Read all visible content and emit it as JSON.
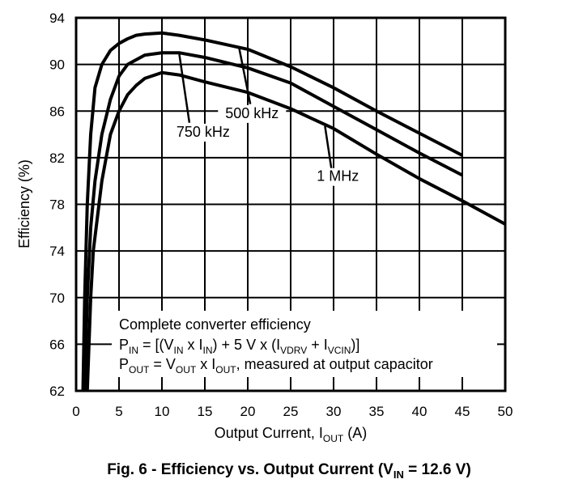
{
  "chart_data": {
    "type": "line",
    "title": "Fig. 6 - Efficiency vs. Output Current (V",
    "title_sub": "IN",
    "title_tail": " = 12.6 V)",
    "xlabel": "Output Current, I",
    "xlabel_sub": "OUT",
    "xlabel_tail": " (A)",
    "ylabel": "Efficiency (%)",
    "xlim": [
      0,
      50
    ],
    "ylim": [
      62,
      94
    ],
    "xticks": [
      0,
      5,
      10,
      15,
      20,
      25,
      30,
      35,
      40,
      45,
      50
    ],
    "yticks": [
      62,
      66,
      70,
      74,
      78,
      82,
      86,
      90,
      94
    ],
    "grid": true,
    "series": [
      {
        "name": "500 kHz",
        "points": [
          [
            0.8,
            62
          ],
          [
            1,
            70
          ],
          [
            1.3,
            78
          ],
          [
            1.7,
            84
          ],
          [
            2.2,
            88
          ],
          [
            3,
            90
          ],
          [
            4,
            91.2
          ],
          [
            5,
            91.8
          ],
          [
            6,
            92.2
          ],
          [
            7,
            92.5
          ],
          [
            8,
            92.6
          ],
          [
            10,
            92.7
          ],
          [
            12,
            92.5
          ],
          [
            15,
            92.1
          ],
          [
            20,
            91.3
          ],
          [
            25,
            89.8
          ],
          [
            30,
            88.0
          ],
          [
            35,
            86.0
          ],
          [
            40,
            84.1
          ],
          [
            45,
            82.2
          ]
        ],
        "label_at": [
          20.5,
          85.4
        ],
        "leader": [
          [
            19,
            91.4
          ],
          [
            20.3,
            86.6
          ]
        ]
      },
      {
        "name": "750 kHz",
        "points": [
          [
            1,
            62
          ],
          [
            1.3,
            70
          ],
          [
            1.7,
            76
          ],
          [
            2.2,
            80
          ],
          [
            3,
            84
          ],
          [
            4,
            87
          ],
          [
            5,
            89
          ],
          [
            6,
            90
          ],
          [
            8,
            90.8
          ],
          [
            10,
            91
          ],
          [
            12,
            91
          ],
          [
            15,
            90.6
          ],
          [
            20,
            89.7
          ],
          [
            25,
            88.4
          ],
          [
            30,
            86.4
          ],
          [
            35,
            84.4
          ],
          [
            40,
            82.4
          ],
          [
            45,
            80.5
          ]
        ],
        "label_at": [
          14.8,
          83.8
        ],
        "leader": [
          [
            12,
            91
          ],
          [
            13.2,
            85
          ]
        ]
      },
      {
        "name": "1 MHz",
        "points": [
          [
            1.3,
            62
          ],
          [
            1.7,
            70
          ],
          [
            2,
            74
          ],
          [
            2.5,
            77
          ],
          [
            3,
            80
          ],
          [
            4,
            84
          ],
          [
            5,
            86
          ],
          [
            6,
            87.4
          ],
          [
            7,
            88.2
          ],
          [
            8,
            88.8
          ],
          [
            10,
            89.3
          ],
          [
            12,
            89.1
          ],
          [
            15,
            88.5
          ],
          [
            20,
            87.6
          ],
          [
            25,
            86.2
          ],
          [
            30,
            84.5
          ],
          [
            35,
            82.3
          ],
          [
            40,
            80.2
          ],
          [
            45,
            78.3
          ],
          [
            50,
            76.3
          ]
        ],
        "label_at": [
          30.5,
          80.0
        ],
        "leader": [
          [
            29,
            84.7
          ],
          [
            29.8,
            80.8
          ]
        ]
      }
    ],
    "annotation": {
      "line1": "Complete converter efficiency",
      "line2": {
        "a": "P",
        "a_sub": "IN",
        "b": " = [(V",
        "b_sub": "IN",
        "c": " x I",
        "c_sub": "IN",
        "d": ") + 5 V x (I",
        "d_sub": "VDRV",
        "e": " + I",
        "e_sub": "VCIN",
        "f": ")]"
      },
      "line3": {
        "a": "P",
        "a_sub": "OUT",
        "b": " = V",
        "b_sub": "OUT",
        "c": " x I",
        "c_sub": "OUT",
        "d": ", measured at output capacitor"
      }
    }
  }
}
